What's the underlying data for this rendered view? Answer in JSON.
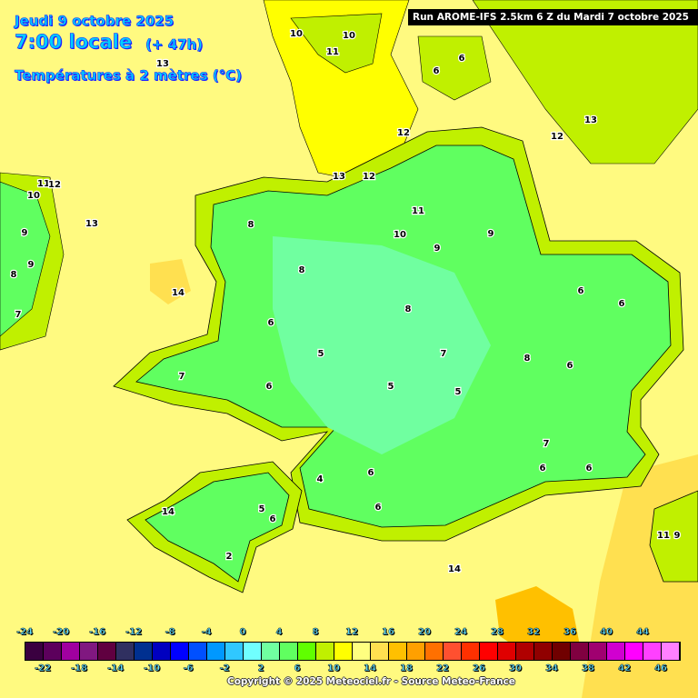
{
  "header": {
    "date": "Jeudi 9 octobre 2025",
    "hour": "7:00 locale",
    "lead": "(+ 47h)",
    "variable": "Températures à 2 mètres (°C)",
    "run": "Run AROME-IFS 2.5km 6 Z du Mardi 7 octobre 2025"
  },
  "legend": {
    "top_labels": [
      "-24",
      "-20",
      "-16",
      "-12",
      "-8",
      "-4",
      "0",
      "4",
      "8",
      "12",
      "16",
      "20",
      "24",
      "28",
      "32",
      "36",
      "40",
      "44"
    ],
    "bottom_labels": [
      "-22",
      "-18",
      "-14",
      "-10",
      "-6",
      "-2",
      "2",
      "6",
      "10",
      "14",
      "18",
      "22",
      "26",
      "30",
      "34",
      "38",
      "42",
      "46"
    ],
    "colors": [
      "#3a0040",
      "#5c005c",
      "#a000a0",
      "#801880",
      "#600040",
      "#303060",
      "#003090",
      "#0000c0",
      "#0000ff",
      "#0050ff",
      "#0098ff",
      "#30c8ff",
      "#70ffff",
      "#70ffa0",
      "#60ff60",
      "#60ff00",
      "#c0f000",
      "#ffff00",
      "#ffff80",
      "#ffe050",
      "#ffc000",
      "#ffa000",
      "#ff7000",
      "#ff5030",
      "#ff3000",
      "#ff0000",
      "#e00000",
      "#b00000",
      "#900000",
      "#700000",
      "#800040",
      "#a00070",
      "#d000d0",
      "#ff00ff",
      "#ff40ff",
      "#ff80ff"
    ]
  },
  "map_labels": [
    "10",
    "10",
    "11",
    "6",
    "6",
    "13",
    "12",
    "12",
    "13",
    "12",
    "11",
    "10",
    "9",
    "9",
    "11",
    "12",
    "10",
    "13",
    "9",
    "9",
    "8",
    "7",
    "13",
    "14",
    "8",
    "8",
    "6",
    "5",
    "8",
    "6",
    "6",
    "8",
    "6",
    "7",
    "5",
    "5",
    "7",
    "6",
    "7",
    "6",
    "6",
    "6",
    "4",
    "5",
    "6",
    "6",
    "14",
    "2",
    "9",
    "14",
    "11"
  ],
  "copyright": "Copyright © 2025 Meteociel.fr - Source Meteo-France"
}
